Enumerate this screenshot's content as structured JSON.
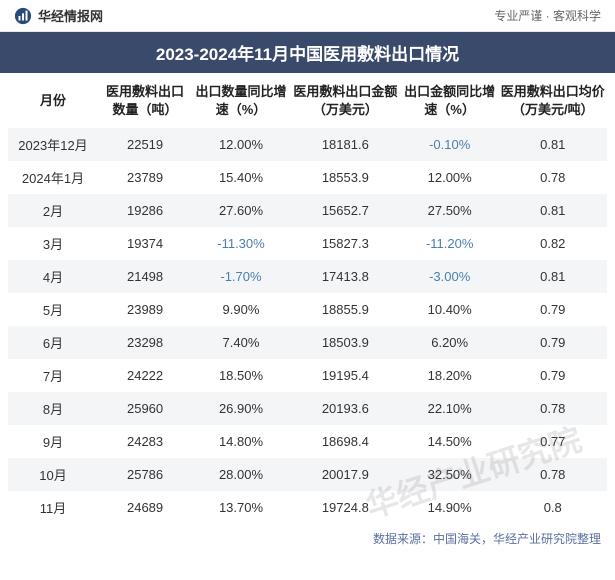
{
  "header": {
    "brand_text": "华经情报网",
    "tagline": "专业严谨 · 客观科学",
    "logo_color": "#2a4a7a"
  },
  "title": "2023-2024年11月中国医用敷料出口情况",
  "columns": [
    "月份",
    "医用敷料出口数量（吨）",
    "出口数量同比增速（%）",
    "医用敷料出口金额（万美元）",
    "出口金额同比增速（%）",
    "医用敷料出口均价（万美元/吨）"
  ],
  "rows": [
    {
      "month": "2023年12月",
      "qty": "22519",
      "qty_g": "12.00%",
      "qty_g_neg": false,
      "amt": "18181.6",
      "amt_g": "-0.10%",
      "amt_g_neg": true,
      "price": "0.81"
    },
    {
      "month": "2024年1月",
      "qty": "23789",
      "qty_g": "15.40%",
      "qty_g_neg": false,
      "amt": "18553.9",
      "amt_g": "12.00%",
      "amt_g_neg": false,
      "price": "0.78"
    },
    {
      "month": "2月",
      "qty": "19286",
      "qty_g": "27.60%",
      "qty_g_neg": false,
      "amt": "15652.7",
      "amt_g": "27.50%",
      "amt_g_neg": false,
      "price": "0.81"
    },
    {
      "month": "3月",
      "qty": "19374",
      "qty_g": "-11.30%",
      "qty_g_neg": true,
      "amt": "15827.3",
      "amt_g": "-11.20%",
      "amt_g_neg": true,
      "price": "0.82"
    },
    {
      "month": "4月",
      "qty": "21498",
      "qty_g": "-1.70%",
      "qty_g_neg": true,
      "amt": "17413.8",
      "amt_g": "-3.00%",
      "amt_g_neg": true,
      "price": "0.81"
    },
    {
      "month": "5月",
      "qty": "23989",
      "qty_g": "9.90%",
      "qty_g_neg": false,
      "amt": "18855.9",
      "amt_g": "10.40%",
      "amt_g_neg": false,
      "price": "0.79"
    },
    {
      "month": "6月",
      "qty": "23298",
      "qty_g": "7.40%",
      "qty_g_neg": false,
      "amt": "18503.9",
      "amt_g": "6.20%",
      "amt_g_neg": false,
      "price": "0.79"
    },
    {
      "month": "7月",
      "qty": "24222",
      "qty_g": "18.50%",
      "qty_g_neg": false,
      "amt": "19195.4",
      "amt_g": "18.20%",
      "amt_g_neg": false,
      "price": "0.79"
    },
    {
      "month": "8月",
      "qty": "25960",
      "qty_g": "26.90%",
      "qty_g_neg": false,
      "amt": "20193.6",
      "amt_g": "22.10%",
      "amt_g_neg": false,
      "price": "0.78"
    },
    {
      "month": "9月",
      "qty": "24283",
      "qty_g": "14.80%",
      "qty_g_neg": false,
      "amt": "18698.4",
      "amt_g": "14.50%",
      "amt_g_neg": false,
      "price": "0.77"
    },
    {
      "month": "10月",
      "qty": "25786",
      "qty_g": "28.00%",
      "qty_g_neg": false,
      "amt": "20017.9",
      "amt_g": "32.50%",
      "amt_g_neg": false,
      "price": "0.78"
    },
    {
      "month": "11月",
      "qty": "24689",
      "qty_g": "13.70%",
      "qty_g_neg": false,
      "amt": "19724.8",
      "amt_g": "14.90%",
      "amt_g_neg": false,
      "price": "0.8"
    }
  ],
  "watermark": "华经产业研究院",
  "source": "数据来源：中国海关，华经产业研究院整理",
  "style": {
    "title_bg": "#3a4a6b",
    "odd_row_bg": "#f4f5f7",
    "neg_color": "#4a7fb0",
    "source_color": "#5a6fa0"
  }
}
